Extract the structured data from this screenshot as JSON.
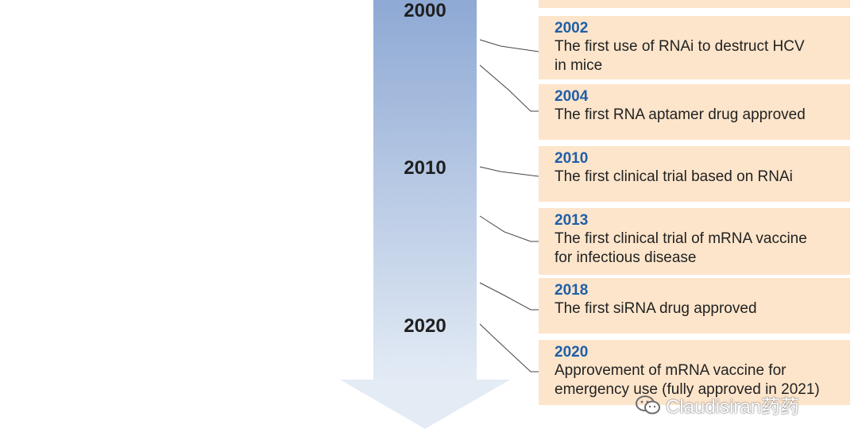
{
  "colors": {
    "arrow_top": "#8ea9d4",
    "arrow_bottom": "#e3ebf5",
    "box_fill": "#fde5cb",
    "year_text": "#1f5fa8",
    "connector": "#444444"
  },
  "decades": [
    "2000",
    "2010",
    "2020"
  ],
  "events": [
    {
      "year": "2002",
      "lines": [
        "The first use of RNAi to destruct HCV",
        "in mice"
      ]
    },
    {
      "year": "2004",
      "lines": [
        "The first RNA aptamer drug approved"
      ]
    },
    {
      "year": "2010",
      "lines": [
        "The first clinical trial based on RNAi"
      ]
    },
    {
      "year": "2013",
      "lines": [
        "The first clinical trial of mRNA vaccine",
        "for infectious disease"
      ]
    },
    {
      "year": "2018",
      "lines": [
        "The first siRNA drug approved"
      ]
    },
    {
      "year": "2020",
      "lines": [
        "Approvement of mRNA vaccine for",
        "emergency use (fully approved in 2021)"
      ]
    }
  ],
  "watermark": {
    "icon": "wechat-icon",
    "text": "Claudisiran药药"
  }
}
